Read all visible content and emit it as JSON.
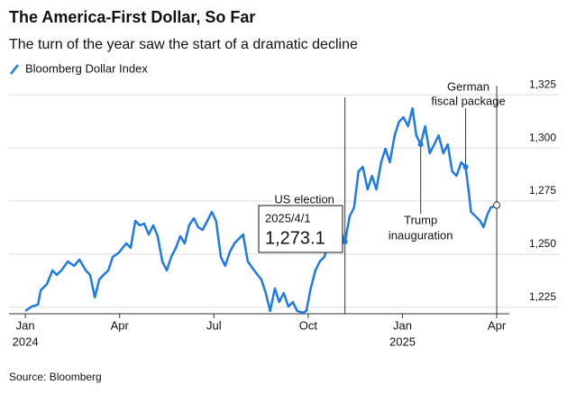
{
  "chart_data": {
    "type": "line",
    "title": "The America-First Dollar, So Far",
    "subtitle": "The turn of the year saw the start of a dramatic decline",
    "source": "Source: Bloomberg",
    "xlim": [
      -0.52,
      15.4
    ],
    "xticks": [
      {
        "value": 0,
        "label": "Jan"
      },
      {
        "value": 3,
        "label": "Apr"
      },
      {
        "value": 6,
        "label": "Jul"
      },
      {
        "value": 9,
        "label": "Oct"
      },
      {
        "value": 12,
        "label": "Jan"
      },
      {
        "value": 15,
        "label": "Apr"
      }
    ],
    "year_labels": [
      {
        "value": 0,
        "label": "2024"
      },
      {
        "value": 12,
        "label": "2025"
      }
    ],
    "ylim": [
      1222,
      1331
    ],
    "yticks": [
      {
        "value": 1225,
        "label": "1,225"
      },
      {
        "value": 1250,
        "label": "1,250"
      },
      {
        "value": 1275,
        "label": "1,275"
      },
      {
        "value": 1300,
        "label": "1,300"
      },
      {
        "value": 1325,
        "label": "1,325"
      }
    ],
    "grid": true,
    "legend": "top-left",
    "x": [
      0,
      0.2,
      0.4,
      0.49,
      0.69,
      0.86,
      1.0,
      1.15,
      1.35,
      1.55,
      1.72,
      1.92,
      2.06,
      2.21,
      2.35,
      2.49,
      2.64,
      2.78,
      2.98,
      3.21,
      3.35,
      3.5,
      3.64,
      3.78,
      3.93,
      4.07,
      4.21,
      4.36,
      4.5,
      4.64,
      4.79,
      4.93,
      5.07,
      5.21,
      5.36,
      5.5,
      5.64,
      5.79,
      5.93,
      6.07,
      6.22,
      6.36,
      6.5,
      6.65,
      6.79,
      6.93,
      7.08,
      7.28,
      7.51,
      7.65,
      7.79,
      7.94,
      8.08,
      8.22,
      8.37,
      8.51,
      8.65,
      8.83,
      8.94,
      9.08,
      9.23,
      9.37,
      9.51,
      9.66,
      9.86,
      10.03,
      10.17,
      10.32,
      10.46,
      10.6,
      10.74,
      10.89,
      11.03,
      11.17,
      11.32,
      11.46,
      11.6,
      11.75,
      11.89,
      12.03,
      12.18,
      12.32,
      12.44,
      12.58,
      12.72,
      12.87,
      13.01,
      13.15,
      13.3,
      13.44,
      13.58,
      13.72,
      13.87,
      14.01,
      14.1,
      14.18,
      14.33,
      14.47,
      14.58,
      14.7,
      14.81,
      15.0
    ],
    "series": [
      {
        "name": "Bloomberg Dollar Index",
        "color": "#1f7ae6",
        "values": [
          1223.3,
          1225.4,
          1226.3,
          1233.1,
          1236.0,
          1242.4,
          1240.3,
          1242.4,
          1246.6,
          1244.5,
          1247.5,
          1242.4,
          1240.3,
          1229.7,
          1238.1,
          1240.3,
          1242.4,
          1248.7,
          1250.8,
          1255.1,
          1253.0,
          1265.7,
          1263.6,
          1264.4,
          1259.3,
          1263.6,
          1258.5,
          1246.6,
          1242.4,
          1248.7,
          1253.0,
          1258.5,
          1255.1,
          1263.6,
          1266.9,
          1262.7,
          1261.4,
          1265.7,
          1269.9,
          1265.7,
          1248.7,
          1244.5,
          1250.8,
          1255.1,
          1257.2,
          1259.3,
          1246.6,
          1242.4,
          1238.1,
          1231.8,
          1223.3,
          1233.9,
          1227.5,
          1231.8,
          1225.4,
          1227.5,
          1223.3,
          1222.5,
          1223.3,
          1233.9,
          1242.4,
          1246.6,
          1248.7,
          1255.1,
          1258.5,
          1261.4,
          1255.9,
          1267.8,
          1272.0,
          1289.0,
          1291.1,
          1280.5,
          1286.9,
          1280.5,
          1293.2,
          1299.6,
          1293.2,
          1305.9,
          1312.3,
          1314.4,
          1310.2,
          1318.6,
          1305.9,
          1301.7,
          1310.2,
          1297.5,
          1301.7,
          1305.9,
          1297.5,
          1301.7,
          1289.0,
          1286.9,
          1293.2,
          1291.1,
          1280.5,
          1269.9,
          1267.8,
          1265.7,
          1262.7,
          1268.6,
          1272.0,
          1273.1
        ]
      }
    ],
    "annotations": [
      {
        "point": 66,
        "lines": [
          "US election"
        ]
      },
      {
        "point": 83,
        "lines": [
          "Trump",
          "inauguration"
        ]
      },
      {
        "point": 93,
        "lines": [
          "German",
          "fiscal package"
        ]
      }
    ],
    "tooltip": {
      "point": 101,
      "date": "2025/4/1",
      "value_label": "1,273.1"
    }
  }
}
